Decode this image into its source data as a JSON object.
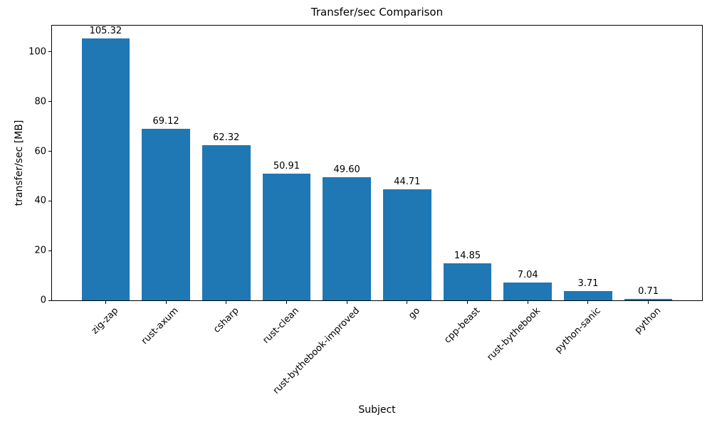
{
  "chart_data": {
    "type": "bar",
    "title": "Transfer/sec Comparison",
    "xlabel": "Subject",
    "ylabel": "transfer/sec [MB]",
    "categories": [
      "zig-zap",
      "rust-axum",
      "csharp",
      "rust-clean",
      "rust-bythebook-improved",
      "go",
      "cpp-beast",
      "rust-bythebook",
      "python-sanic",
      "python"
    ],
    "values": [
      105.32,
      69.12,
      62.32,
      50.91,
      49.6,
      44.71,
      14.85,
      7.04,
      3.71,
      0.71
    ],
    "value_labels": [
      "105.32",
      "69.12",
      "62.32",
      "50.91",
      "49.60",
      "44.71",
      "14.85",
      "7.04",
      "3.71",
      "0.71"
    ],
    "yticks": [
      0,
      20,
      40,
      60,
      80,
      100
    ],
    "ylim": [
      0,
      110.6
    ],
    "bar_color": "#1f77b4",
    "grid": false,
    "legend_position": "none",
    "value_label_format": ".2f",
    "xtick_rotation_deg": 45
  }
}
